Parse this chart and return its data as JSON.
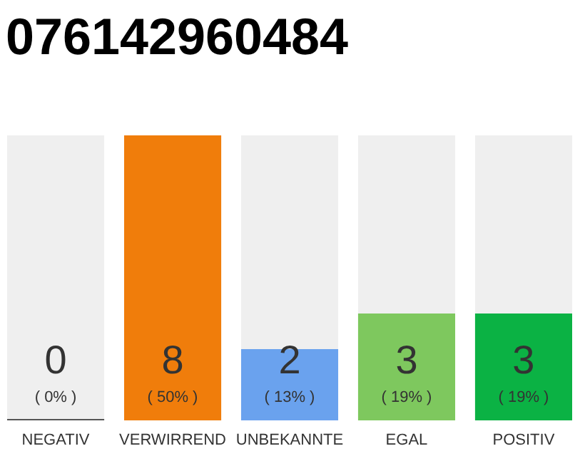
{
  "chart_data": {
    "type": "bar",
    "title": "076142960484",
    "categories": [
      "NEGATIV",
      "VERWIRREND",
      "UNBEKANNTE",
      "EGAL",
      "POSITIV"
    ],
    "values": [
      0,
      8,
      2,
      3,
      3
    ],
    "colors": [
      "#555555",
      "#f07d0b",
      "#6aa2ee",
      "#7ec85e",
      "#0bb244"
    ],
    "ylim": [
      0,
      8
    ],
    "tick_labels": "x",
    "data_labels": true,
    "annotations": [
      "( 0% )",
      "( 50% )",
      "( 13% )",
      "( 19% )",
      "( 19% )"
    ]
  }
}
